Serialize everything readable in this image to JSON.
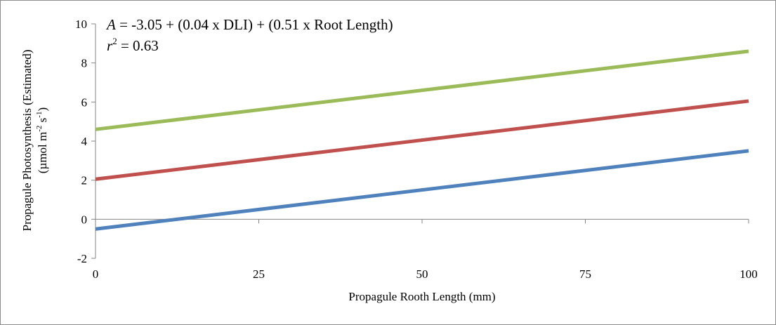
{
  "chart_data": {
    "type": "line",
    "title": "",
    "xlabel": "Propagule Rooth Length (mm)",
    "ylabel": {
      "line1": "Propagule Photosynthesis  (Estimated)",
      "line2_prefix": "(µmol m",
      "line2_exp1": "-2",
      "line2_mid": " s",
      "line2_exp2": "-1",
      "line2_suffix": ")"
    },
    "xlim": [
      0,
      100
    ],
    "ylim": [
      -2,
      10
    ],
    "xticks": [
      "0",
      "25",
      "50",
      "75",
      "100"
    ],
    "xtick_values": [
      0,
      25,
      50,
      75,
      100
    ],
    "yticks": [
      "-2",
      "0",
      "2",
      "4",
      "6",
      "8",
      "10"
    ],
    "ytick_values": [
      -2,
      0,
      2,
      4,
      6,
      8,
      10
    ],
    "grid": false,
    "series": [
      {
        "x": [
          0,
          100
        ],
        "y": [
          4.6,
          8.6
        ],
        "color": "#9BBB59"
      },
      {
        "x": [
          0,
          100
        ],
        "y": [
          2.05,
          6.05
        ],
        "color": "#C0504D"
      },
      {
        "x": [
          0,
          100
        ],
        "y": [
          -0.5,
          3.5
        ],
        "color": "#4F81BD"
      }
    ],
    "annotations": {
      "equation": {
        "var": "A",
        "text": " = -3.05 + (0.04 x DLI) + (0.51 x Root Length)"
      },
      "r2": {
        "var": "r",
        "exp": "2",
        "text": " = 0.63"
      }
    }
  }
}
